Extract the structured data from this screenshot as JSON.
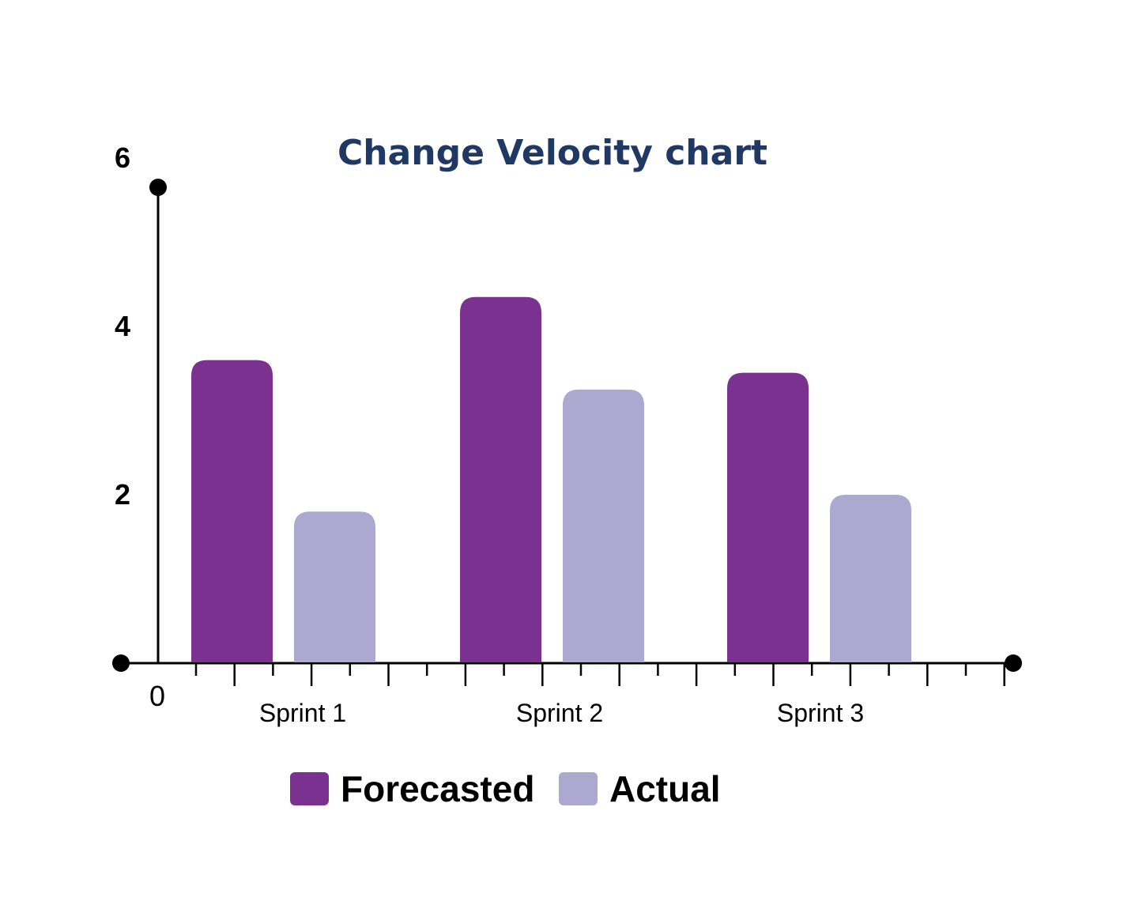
{
  "chart_data": {
    "type": "bar",
    "title": "Change Velocity chart",
    "categories": [
      "Sprint 1",
      "Sprint 2",
      "Sprint 3"
    ],
    "series": [
      {
        "name": "Forecasted",
        "values": [
          3.6,
          4.35,
          3.45
        ],
        "color": "#7b3190"
      },
      {
        "name": "Actual",
        "values": [
          1.8,
          3.25,
          2.0
        ],
        "color": "#aca8d0"
      }
    ],
    "y_ticks": [
      2,
      4,
      6
    ],
    "origin_label": "0",
    "ylim": [
      0,
      5.9
    ],
    "xlabel": "",
    "ylabel": "",
    "grid": false,
    "legend": "bottom-center",
    "title_color": "#1f3864",
    "axis_color": "#000000"
  }
}
